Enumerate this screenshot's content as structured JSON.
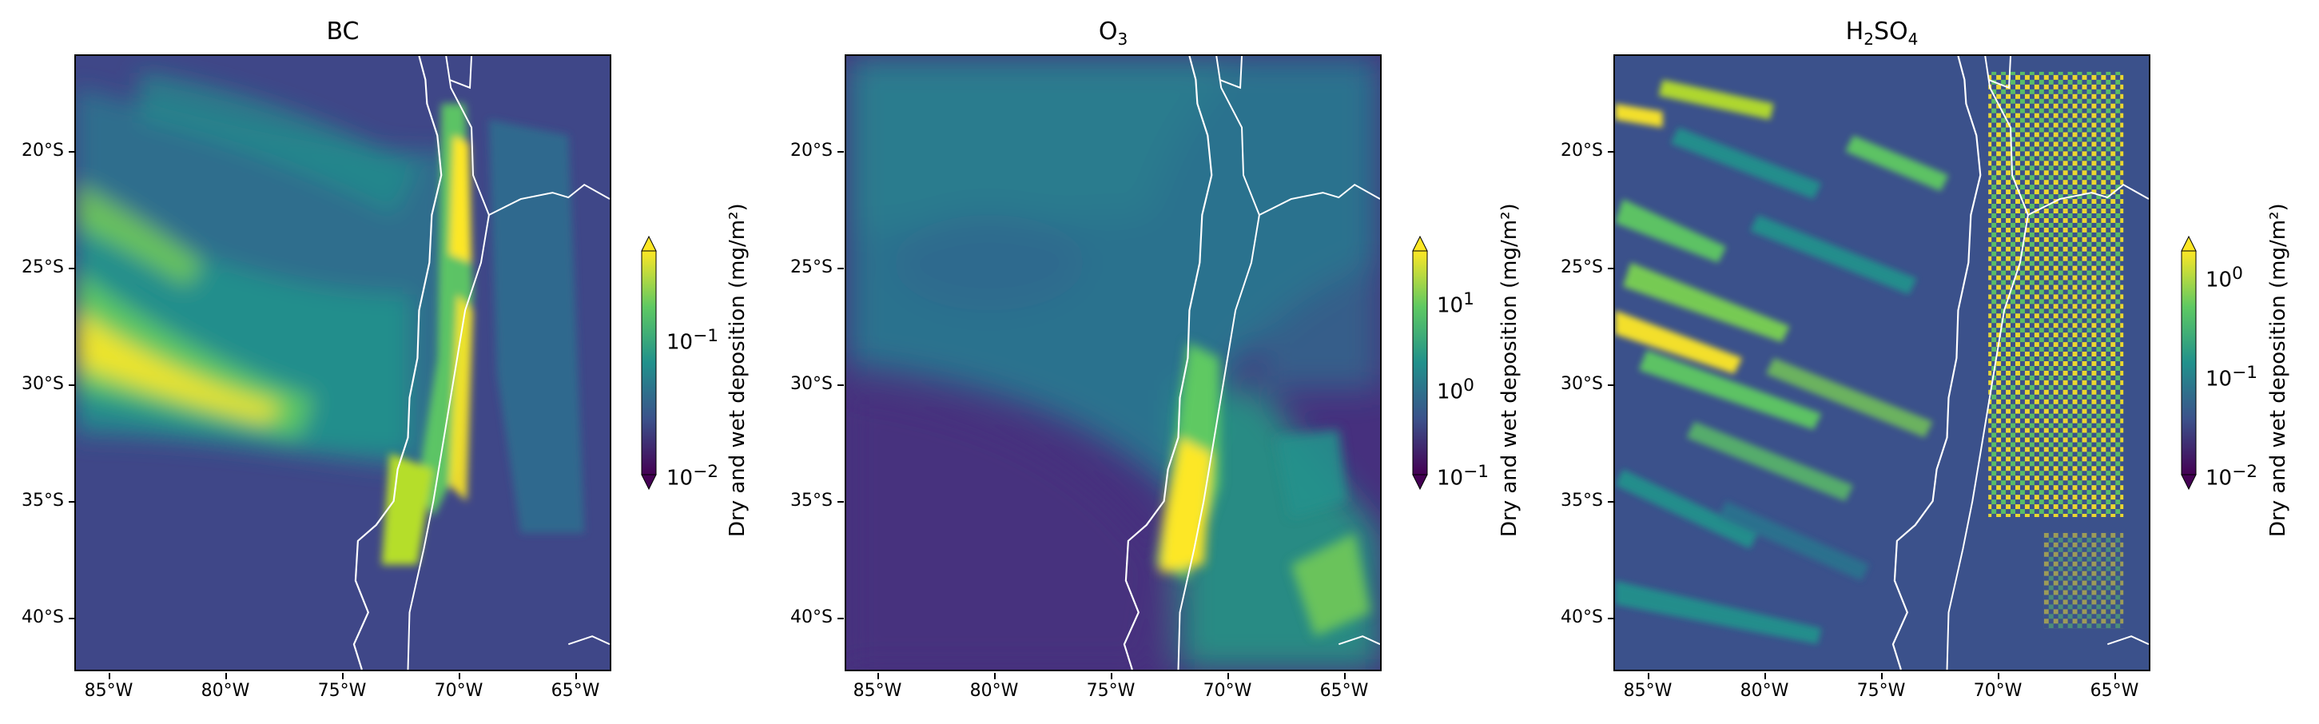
{
  "figure": {
    "colorbar_label": "Dry and wet deposition (mg/m²)",
    "colormap": "viridis",
    "lat_ticks": [
      "20°S",
      "25°S",
      "30°S",
      "35°S",
      "40°S"
    ],
    "lon_ticks": [
      "85°W",
      "80°W",
      "75°W",
      "70°W",
      "65°W"
    ],
    "lon_range": [
      -86.5,
      -63.5
    ],
    "lat_range": [
      -42.5,
      -16
    ],
    "colors": {
      "coast": "#ffffff",
      "frame": "#000000",
      "ocean_low": "#46307e"
    }
  },
  "panels": [
    {
      "id": "bc",
      "title_main": "BC",
      "title_sub": "",
      "title_tail": "",
      "colorbar_ticks": [
        {
          "base": "10",
          "exp": "−1",
          "level": 0.59
        },
        {
          "base": "10",
          "exp": "−2",
          "level": 0.0
        }
      ],
      "ocean_color": "#3f4788"
    },
    {
      "id": "o3",
      "title_main": "O",
      "title_sub": "3",
      "title_tail": "",
      "colorbar_ticks": [
        {
          "base": "10",
          "exp": "1",
          "level": 0.76
        },
        {
          "base": "10",
          "exp": "0",
          "level": 0.38
        },
        {
          "base": "10",
          "exp": "−1",
          "level": 0.0
        }
      ],
      "ocean_color": "#2c728e"
    },
    {
      "id": "h2so4",
      "title_main": "H",
      "title_sub": "2",
      "title_tail": "SO",
      "title_sub2": "4",
      "colorbar_ticks": [
        {
          "base": "10",
          "exp": "0",
          "level": 0.86
        },
        {
          "base": "10",
          "exp": "−1",
          "level": 0.43
        },
        {
          "base": "10",
          "exp": "−2",
          "level": 0.0
        }
      ],
      "ocean_color": "#3b518b"
    }
  ]
}
